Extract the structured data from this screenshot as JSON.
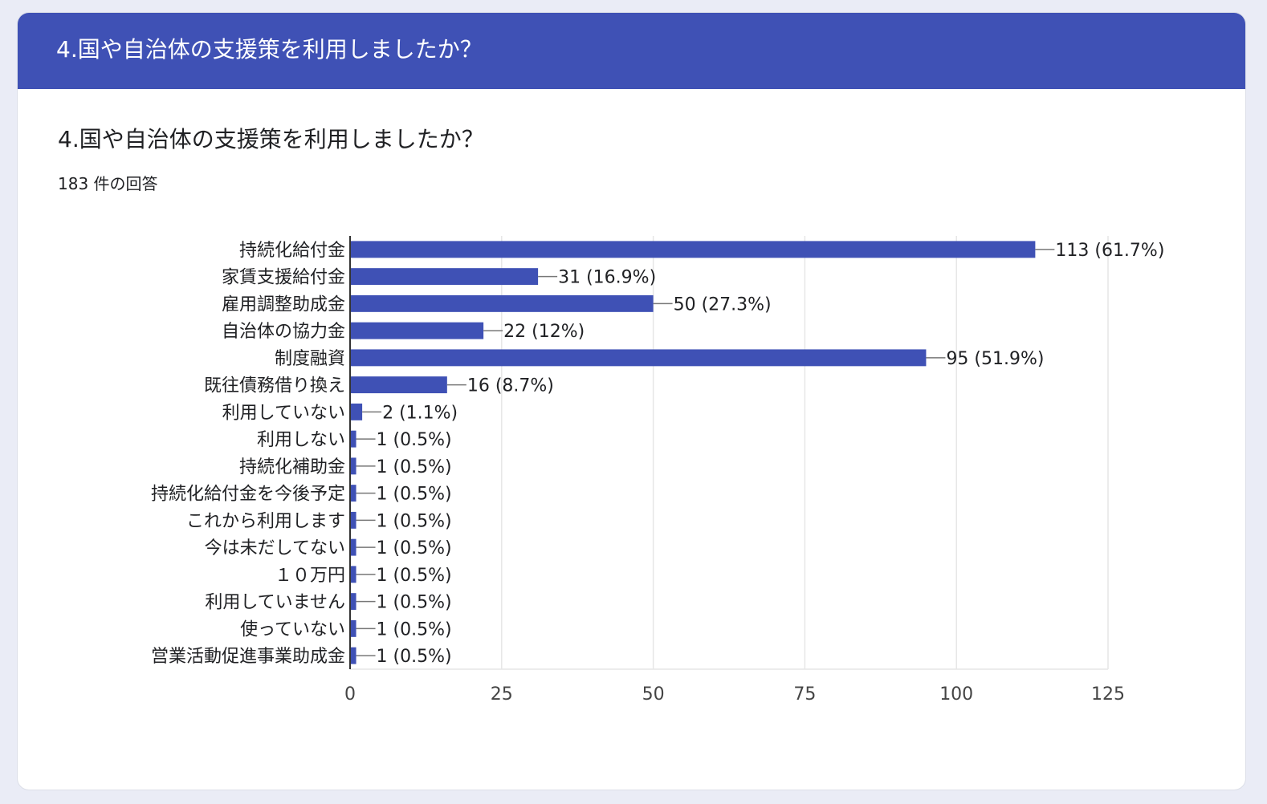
{
  "header": {
    "title": "4.国や自治体の支援策を利用しましたか？"
  },
  "question": {
    "title": "4.国や自治体の支援策を利用しましたか？",
    "response_count": "183 件の回答"
  },
  "colors": {
    "header_bg": "#3f51b5",
    "bar": "#3f51b5",
    "gridline": "#e6e6e6",
    "axis": "#333333",
    "text": "#202124"
  },
  "chart_data": {
    "type": "bar",
    "orientation": "horizontal",
    "categories": [
      "持続化給付金",
      "家賃支援給付金",
      "雇用調整助成金",
      "自治体の協力金",
      "制度融資",
      "既往債務借り換え",
      "利用していない",
      "利用しない",
      "持続化補助金",
      "持続化給付金を今後予定",
      "これから利用します",
      "今は未だしてない",
      "１０万円",
      "利用していません",
      "使っていない",
      "営業活動促進事業助成金"
    ],
    "values": [
      113,
      31,
      50,
      22,
      95,
      16,
      2,
      1,
      1,
      1,
      1,
      1,
      1,
      1,
      1,
      1
    ],
    "data_labels": [
      "113 (61.7%)",
      "31 (16.9%)",
      "50 (27.3%)",
      "22 (12%)",
      "95 (51.9%)",
      "16 (8.7%)",
      "2 (1.1%)",
      "1 (0.5%)",
      "1 (0.5%)",
      "1 (0.5%)",
      "1 (0.5%)",
      "1 (0.5%)",
      "1 (0.5%)",
      "1 (0.5%)",
      "1 (0.5%)",
      "1 (0.5%)"
    ],
    "xlim": [
      0,
      125
    ],
    "xticks": [
      0,
      25,
      50,
      75,
      100,
      125
    ],
    "grid": true,
    "legend": "none"
  }
}
